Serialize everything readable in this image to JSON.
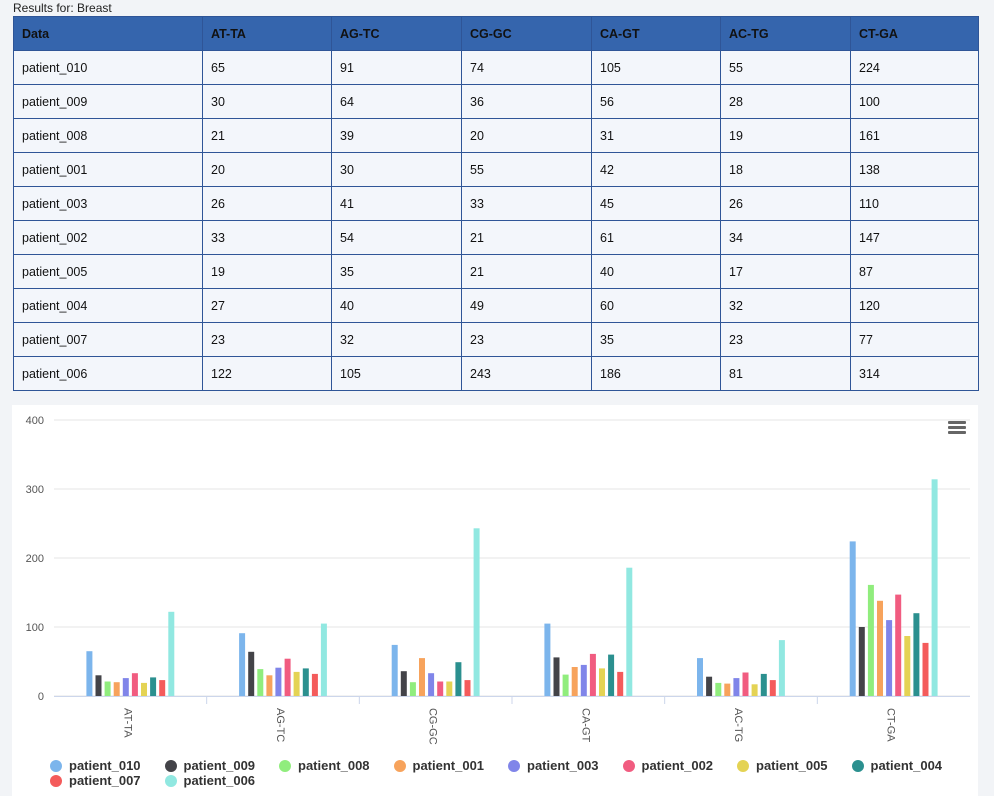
{
  "caption": "Results for: Breast",
  "table": {
    "headers": [
      "Data",
      "AT-TA",
      "AG-TC",
      "CG-GC",
      "CA-GT",
      "AC-TG",
      "CT-GA"
    ],
    "rows": [
      [
        "patient_010",
        "65",
        "91",
        "74",
        "105",
        "55",
        "224"
      ],
      [
        "patient_009",
        "30",
        "64",
        "36",
        "56",
        "28",
        "100"
      ],
      [
        "patient_008",
        "21",
        "39",
        "20",
        "31",
        "19",
        "161"
      ],
      [
        "patient_001",
        "20",
        "30",
        "55",
        "42",
        "18",
        "138"
      ],
      [
        "patient_003",
        "26",
        "41",
        "33",
        "45",
        "26",
        "110"
      ],
      [
        "patient_002",
        "33",
        "54",
        "21",
        "61",
        "34",
        "147"
      ],
      [
        "patient_005",
        "19",
        "35",
        "21",
        "40",
        "17",
        "87"
      ],
      [
        "patient_004",
        "27",
        "40",
        "49",
        "60",
        "32",
        "120"
      ],
      [
        "patient_007",
        "23",
        "32",
        "23",
        "35",
        "23",
        "77"
      ],
      [
        "patient_006",
        "122",
        "105",
        "243",
        "186",
        "81",
        "314"
      ]
    ]
  },
  "chart_data": {
    "type": "bar",
    "categories": [
      "AT-TA",
      "AG-TC",
      "CG-GC",
      "CA-GT",
      "AC-TG",
      "CT-GA"
    ],
    "ylim": [
      0,
      400
    ],
    "yticks": [
      "0",
      "100",
      "200",
      "300",
      "400"
    ],
    "grid": true,
    "legend_position": "bottom",
    "series": [
      {
        "name": "patient_010",
        "color": "#7cb5ec",
        "values": [
          65,
          91,
          74,
          105,
          55,
          224
        ]
      },
      {
        "name": "patient_009",
        "color": "#434348",
        "values": [
          30,
          64,
          36,
          56,
          28,
          100
        ]
      },
      {
        "name": "patient_008",
        "color": "#90ed7d",
        "values": [
          21,
          39,
          20,
          31,
          19,
          161
        ]
      },
      {
        "name": "patient_001",
        "color": "#f7a35c",
        "values": [
          20,
          30,
          55,
          42,
          18,
          138
        ]
      },
      {
        "name": "patient_003",
        "color": "#8085e9",
        "values": [
          26,
          41,
          33,
          45,
          26,
          110
        ]
      },
      {
        "name": "patient_002",
        "color": "#f15c80",
        "values": [
          33,
          54,
          21,
          61,
          34,
          147
        ]
      },
      {
        "name": "patient_005",
        "color": "#e4d354",
        "values": [
          19,
          35,
          21,
          40,
          17,
          87
        ]
      },
      {
        "name": "patient_004",
        "color": "#2b908f",
        "values": [
          27,
          40,
          49,
          60,
          32,
          120
        ]
      },
      {
        "name": "patient_007",
        "color": "#f45b5b",
        "values": [
          23,
          32,
          23,
          35,
          23,
          77
        ]
      },
      {
        "name": "patient_006",
        "color": "#91e8e1",
        "values": [
          122,
          105,
          243,
          186,
          81,
          314
        ]
      }
    ]
  },
  "menu": {
    "icon": "hamburger-menu-icon"
  }
}
